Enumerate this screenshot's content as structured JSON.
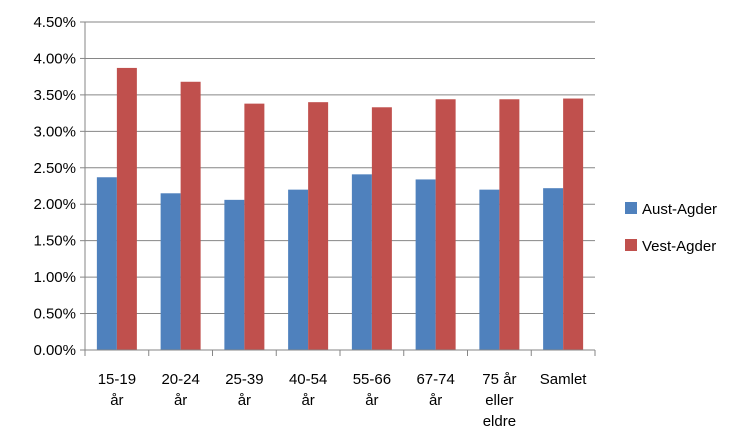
{
  "chart_data": {
    "type": "bar",
    "title": "",
    "xlabel": "",
    "ylabel": "",
    "categories": [
      [
        "15-19",
        "år"
      ],
      [
        "20-24",
        "år"
      ],
      [
        "25-39",
        "år"
      ],
      [
        "40-54",
        "år"
      ],
      [
        "55-66",
        "år"
      ],
      [
        "67-74",
        "år"
      ],
      [
        "75 år",
        "eller",
        "eldre"
      ],
      [
        "Samlet"
      ]
    ],
    "series": [
      {
        "name": "Aust-Agder",
        "color": "#4F81BD",
        "values": [
          2.37,
          2.15,
          2.06,
          2.2,
          2.41,
          2.34,
          2.2,
          2.22
        ]
      },
      {
        "name": "Vest-Agder",
        "color": "#C0504D",
        "values": [
          3.87,
          3.68,
          3.38,
          3.4,
          3.33,
          3.44,
          3.44,
          3.45
        ]
      }
    ],
    "ylim": [
      0,
      4.5
    ],
    "yticks": [
      "0.00%",
      "0.50%",
      "1.00%",
      "1.50%",
      "2.00%",
      "2.50%",
      "3.00%",
      "3.50%",
      "4.00%",
      "4.50%"
    ],
    "ytick_values": [
      0,
      0.5,
      1.0,
      1.5,
      2.0,
      2.5,
      3.0,
      3.5,
      4.0,
      4.5
    ],
    "grid": true,
    "legend_position": "right"
  }
}
